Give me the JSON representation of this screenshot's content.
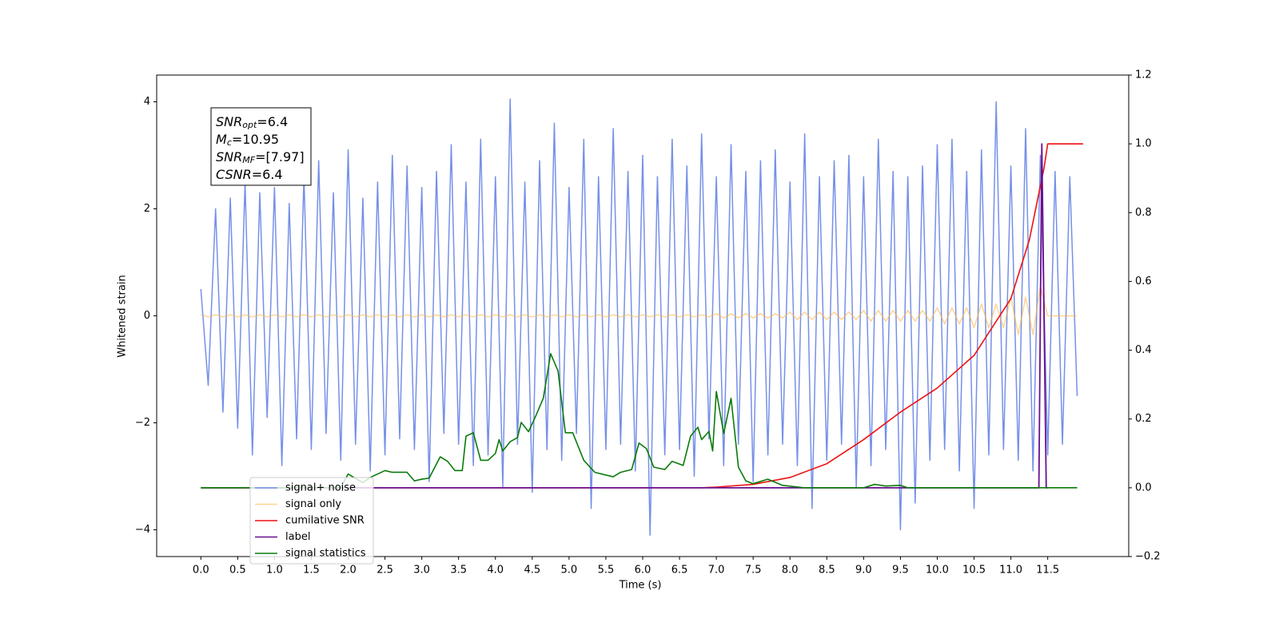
{
  "chart_data": {
    "type": "line",
    "xlabel": "Time (s)",
    "ylabel": "Whitened strain",
    "annotations": [
      {
        "base": "SNR",
        "sub": "opt",
        "text": "=6.4"
      },
      {
        "base": "M",
        "sub": "c",
        "text": "=10.95"
      },
      {
        "base": "SNR",
        "sub": "MF",
        "text": "=[7.97]"
      },
      {
        "base": "CSNR",
        "sub": "",
        "text": "=6.4"
      }
    ],
    "xlim": [
      -0.6,
      12.6
    ],
    "ylim": [
      -4.5,
      4.5
    ],
    "y2lim": [
      -0.2,
      1.2
    ],
    "xticks": [
      {
        "value": 0,
        "label": "0.0"
      },
      0.5,
      {
        "value": 1,
        "label": "1.0"
      },
      1.5,
      {
        "value": 2,
        "label": "2.0"
      },
      2.5,
      {
        "value": 3,
        "label": "3.0"
      },
      3.5,
      {
        "value": 4,
        "label": "4.0"
      },
      4.5,
      {
        "value": 5,
        "label": "5.0"
      },
      5.5,
      {
        "value": 6,
        "label": "6.0"
      },
      6.5,
      {
        "value": 7,
        "label": "7.0"
      },
      7.5,
      {
        "value": 8,
        "label": "8.0"
      },
      8.5,
      {
        "value": 9,
        "label": "9.0"
      },
      9.5,
      {
        "value": 10,
        "label": "10.0"
      },
      10.5,
      {
        "value": 11,
        "label": "11.0"
      },
      11.5
    ],
    "yticks": [
      {
        "value": -4,
        "label": "−4"
      },
      {
        "value": -2,
        "label": "−2"
      },
      0,
      2,
      4
    ],
    "y2ticks": [
      {
        "value": -0.2,
        "label": "−0.2"
      },
      {
        "value": 0,
        "label": "0.0"
      },
      0.2,
      0.4,
      0.6,
      0.8,
      {
        "value": 1,
        "label": "1.0"
      },
      1.2
    ],
    "x": [
      0,
      0.1,
      0.2,
      0.3,
      0.4,
      0.5,
      0.6,
      0.7,
      0.8,
      0.9,
      1,
      1.1,
      1.2,
      1.3,
      1.4,
      1.5,
      1.6,
      1.7,
      1.8,
      1.9,
      2,
      2.1,
      2.2,
      2.3,
      2.4,
      2.5,
      2.6,
      2.7,
      2.8,
      2.9,
      3,
      3.1,
      3.2,
      3.3,
      3.4,
      3.5,
      3.6,
      3.7,
      3.8,
      3.9,
      4,
      4.1,
      4.2,
      4.3,
      4.4,
      4.5,
      4.6,
      4.7,
      4.8,
      4.9,
      5,
      5.1,
      5.2,
      5.3,
      5.4,
      5.5,
      5.6,
      5.7,
      5.8,
      5.9,
      6,
      6.1,
      6.2,
      6.3,
      6.4,
      6.5,
      6.6,
      6.7,
      6.8,
      6.9,
      7,
      7.1,
      7.2,
      7.3,
      7.4,
      7.5,
      7.6,
      7.7,
      7.8,
      7.9,
      8,
      8.1,
      8.2,
      8.3,
      8.4,
      8.5,
      8.6,
      8.7,
      8.8,
      8.9,
      9,
      9.1,
      9.2,
      9.3,
      9.4,
      9.5,
      9.6,
      9.7,
      9.8,
      9.9,
      10,
      10.1,
      10.2,
      10.3,
      10.4,
      10.5,
      10.6,
      10.7,
      10.8,
      10.9,
      11,
      11.1,
      11.2,
      11.3,
      11.4,
      11.5,
      11.6,
      11.7,
      11.8,
      11.9
    ],
    "series": [
      {
        "name": "signal+ noise",
        "color": "#6f8ae6",
        "values": [
          0.5,
          -1.3,
          2.0,
          -1.8,
          2.2,
          -2.1,
          2.5,
          -2.6,
          2.3,
          -1.9,
          2.4,
          -2.8,
          2.1,
          -2.3,
          2.6,
          -2.5,
          2.9,
          -2.2,
          2.3,
          -2.7,
          3.1,
          -2.4,
          2.2,
          -2.9,
          2.5,
          -2.6,
          3.0,
          -2.3,
          2.8,
          -2.5,
          2.4,
          -3.1,
          2.7,
          -2.2,
          3.2,
          -2.4,
          2.5,
          -2.8,
          3.3,
          -2.6,
          2.6,
          -3.2,
          4.05,
          -2.4,
          2.5,
          -3.3,
          2.9,
          -2.5,
          3.6,
          -2.7,
          2.4,
          -2.2,
          3.3,
          -3.6,
          2.6,
          -2.5,
          3.5,
          -2.4,
          2.7,
          -2.9,
          3.0,
          -4.1,
          2.6,
          -2.6,
          3.3,
          -2.5,
          2.8,
          -3.0,
          3.4,
          -2.3,
          2.6,
          -2.8,
          3.2,
          -2.4,
          2.7,
          -3.1,
          2.9,
          -2.6,
          3.1,
          -2.4,
          2.5,
          -2.8,
          3.4,
          -3.6,
          2.6,
          -2.7,
          2.9,
          -2.4,
          3.0,
          -3.2,
          2.6,
          -2.8,
          3.3,
          -2.5,
          2.7,
          -4.0,
          2.6,
          -3.5,
          2.8,
          -2.7,
          3.2,
          -2.5,
          3.3,
          -2.9,
          2.7,
          -3.6,
          3.1,
          -2.6,
          4.0,
          -2.5,
          2.8,
          -2.7,
          3.5,
          -2.9,
          3.0,
          -2.6,
          2.7,
          -2.4,
          2.6,
          -1.5
        ]
      },
      {
        "name": "signal only",
        "color": "#ffb84d",
        "values": [
          0.02,
          -0.02,
          0.02,
          -0.02,
          0.02,
          -0.02,
          0.02,
          -0.02,
          0.02,
          -0.02,
          0.02,
          -0.02,
          0.02,
          -0.02,
          0.02,
          -0.02,
          0.02,
          -0.02,
          0.02,
          -0.02,
          0.02,
          -0.02,
          0.02,
          -0.02,
          0.02,
          -0.02,
          0.02,
          -0.02,
          0.02,
          -0.02,
          0.02,
          -0.02,
          0.02,
          -0.02,
          0.02,
          -0.02,
          0.02,
          -0.02,
          0.02,
          -0.02,
          0.02,
          -0.02,
          0.02,
          -0.02,
          0.02,
          -0.02,
          0.02,
          -0.02,
          0.02,
          -0.02,
          0.02,
          -0.02,
          0.02,
          -0.02,
          0.02,
          -0.02,
          0.02,
          -0.02,
          0.02,
          -0.02,
          0.02,
          -0.02,
          0.02,
          -0.02,
          0.02,
          -0.02,
          0.02,
          -0.02,
          0.02,
          -0.02,
          0.04,
          -0.04,
          0.04,
          -0.04,
          0.04,
          -0.04,
          0.04,
          -0.04,
          0.04,
          -0.04,
          0.07,
          -0.07,
          0.07,
          -0.07,
          0.07,
          -0.07,
          0.07,
          -0.07,
          0.07,
          -0.07,
          0.1,
          -0.1,
          0.1,
          -0.1,
          0.1,
          -0.1,
          0.1,
          -0.1,
          0.1,
          -0.1,
          0.15,
          -0.15,
          0.15,
          -0.15,
          0.15,
          -0.22,
          0.22,
          -0.22,
          0.22,
          -0.22,
          0.35,
          -0.35,
          0.35,
          -0.35,
          0.55,
          0,
          0,
          0,
          0,
          0
        ]
      },
      {
        "name": "cumilative SNR",
        "color": "#ee1111",
        "axis": "y2",
        "x": [
          0,
          6.8,
          7.0,
          7.5,
          8.0,
          8.5,
          9.0,
          9.5,
          10.0,
          10.5,
          11.0,
          11.25,
          11.45,
          11.5,
          11.98
        ],
        "values": [
          0,
          0,
          0.002,
          0.01,
          0.03,
          0.07,
          0.14,
          0.22,
          0.29,
          0.385,
          0.55,
          0.72,
          0.93,
          1.0,
          1.0
        ]
      },
      {
        "name": "label",
        "color": "#6a0f8e",
        "axis": "y2",
        "x": [
          0,
          11.38,
          11.42,
          11.48,
          11.5
        ],
        "values": [
          0,
          0,
          1.0,
          0,
          0
        ]
      },
      {
        "name": "signal statistics",
        "color": "#0a7a0a",
        "axis": "y2",
        "x": [
          0,
          1.9,
          2.0,
          2.2,
          2.3,
          2.5,
          2.6,
          2.8,
          2.9,
          3.0,
          3.1,
          3.25,
          3.35,
          3.45,
          3.55,
          3.6,
          3.7,
          3.8,
          3.9,
          4.0,
          4.05,
          4.1,
          4.2,
          4.3,
          4.35,
          4.45,
          4.55,
          4.65,
          4.75,
          4.85,
          4.95,
          5.05,
          5.2,
          5.35,
          5.5,
          5.6,
          5.7,
          5.85,
          5.95,
          6.05,
          6.15,
          6.3,
          6.4,
          6.55,
          6.65,
          6.75,
          6.8,
          6.9,
          6.95,
          7.0,
          7.1,
          7.2,
          7.3,
          7.4,
          7.5,
          7.7,
          7.9,
          8.2,
          9.0,
          9.15,
          9.3,
          9.5,
          9.6,
          11.9
        ],
        "values": [
          0,
          0,
          0.04,
          0.015,
          0.03,
          0.05,
          0.045,
          0.045,
          0.02,
          0.025,
          0.028,
          0.09,
          0.077,
          0.05,
          0.05,
          0.15,
          0.16,
          0.08,
          0.08,
          0.1,
          0.14,
          0.107,
          0.134,
          0.146,
          0.19,
          0.163,
          0.21,
          0.26,
          0.39,
          0.34,
          0.16,
          0.16,
          0.08,
          0.045,
          0.037,
          0.032,
          0.045,
          0.053,
          0.13,
          0.114,
          0.06,
          0.053,
          0.077,
          0.065,
          0.15,
          0.176,
          0.14,
          0.164,
          0.107,
          0.28,
          0.158,
          0.26,
          0.06,
          0.02,
          0.012,
          0.025,
          0.007,
          0,
          0,
          0.01,
          0.005,
          0.007,
          0,
          0
        ]
      }
    ]
  }
}
